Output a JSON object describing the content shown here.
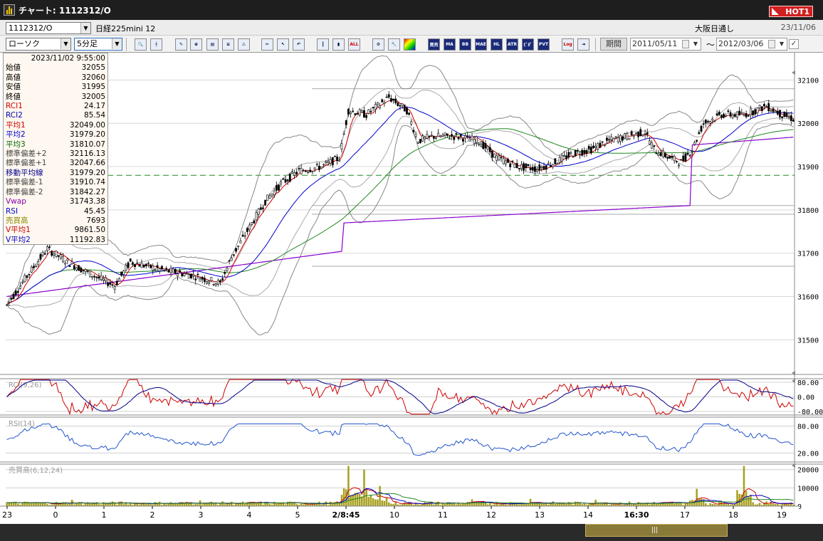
{
  "window": {
    "title": "チャート: 1112312/O",
    "hot_label": "HOT1"
  },
  "header": {
    "symbol_code": "1112312/O",
    "symbol_name": "日経225mini 12",
    "market": "大阪日通し",
    "date": "23/11/06"
  },
  "toolbar": {
    "chart_type": "ローソク",
    "timeframe": "5分足",
    "buttons": [
      "ALL",
      "MA",
      "BB",
      "MAE",
      "HL",
      "ATR",
      "ﾋﾟﾎﾞ",
      "PVT",
      "Log"
    ],
    "period_label": "期間",
    "date_from": "2011/05/11",
    "date_to": "2012/03/06",
    "tilde": "～"
  },
  "info": {
    "timestamp": "2023/11/02  9:55:00",
    "rows": [
      {
        "label": "始値",
        "value": "32055",
        "color": "#000000"
      },
      {
        "label": "高値",
        "value": "32060",
        "color": "#000000"
      },
      {
        "label": "安値",
        "value": "31995",
        "color": "#000000"
      },
      {
        "label": "終値",
        "value": "32005",
        "color": "#000000"
      },
      {
        "label": "RCI1",
        "value": "24.17",
        "color": "#cc0000"
      },
      {
        "label": "RCI2",
        "value": "85.54",
        "color": "#0000aa"
      },
      {
        "label": "平均1",
        "value": "32049.00",
        "color": "#cc0000"
      },
      {
        "label": "平均2",
        "value": "31979.20",
        "color": "#0000cc"
      },
      {
        "label": "平均3",
        "value": "31810.07",
        "color": "#006600"
      },
      {
        "label": "標準偏差+2",
        "value": "32116.13",
        "color": "#444444"
      },
      {
        "label": "標準偏差+1",
        "value": "32047.66",
        "color": "#444444"
      },
      {
        "label": "移動平均線",
        "value": "31979.20",
        "color": "#000088"
      },
      {
        "label": "標準偏差-1",
        "value": "31910.74",
        "color": "#444444"
      },
      {
        "label": "標準偏差-2",
        "value": "31842.27",
        "color": "#444444"
      },
      {
        "label": "Vwap",
        "value": "31743.38",
        "color": "#8800aa"
      },
      {
        "label": "RSI",
        "value": "45.45",
        "color": "#0000cc"
      },
      {
        "label": "売買高",
        "value": "7693",
        "color": "#888800"
      },
      {
        "label": "V平均1",
        "value": "9861.50",
        "color": "#cc0000"
      },
      {
        "label": "V平均2",
        "value": "11192.83",
        "color": "#0000cc"
      }
    ]
  },
  "price_axis": {
    "ticks": [
      "32100",
      "32000",
      "31900",
      "31800",
      "31700",
      "31600",
      "31500"
    ],
    "min": 31420,
    "max": 32150
  },
  "reference_line": 31880,
  "rci_panel": {
    "label": "RCI(9,26)",
    "ticks": [
      "80.00",
      "0.00",
      "-80.00"
    ]
  },
  "rsi_panel": {
    "label": "RSI(14)",
    "ticks": [
      "80.00",
      "20.00"
    ]
  },
  "volume_panel": {
    "label": "売買高(6,12,24)",
    "ticks": [
      "20000",
      "10000",
      "0"
    ]
  },
  "x_axis": {
    "labels": [
      {
        "text": "23",
        "bold": false
      },
      {
        "text": "0",
        "bold": false
      },
      {
        "text": "1",
        "bold": false
      },
      {
        "text": "2",
        "bold": false
      },
      {
        "text": "3",
        "bold": false
      },
      {
        "text": "4",
        "bold": false
      },
      {
        "text": "5",
        "bold": false
      },
      {
        "text": "2/8:45",
        "bold": true
      },
      {
        "text": "10",
        "bold": false
      },
      {
        "text": "11",
        "bold": false
      },
      {
        "text": "12",
        "bold": false
      },
      {
        "text": "13",
        "bold": false
      },
      {
        "text": "14",
        "bold": false
      },
      {
        "text": "16:30",
        "bold": true
      },
      {
        "text": "17",
        "bold": false
      },
      {
        "text": "18",
        "bold": false
      },
      {
        "text": "19",
        "bold": false
      }
    ]
  },
  "colors": {
    "ma1": "#cc0000",
    "ma2": "#0000cc",
    "ma3": "#228822",
    "vwap": "#8800cc",
    "bb": "#888888",
    "volume": "#a8a020",
    "rci1": "#cc0000",
    "rci2": "#000088",
    "rsi": "#2255cc"
  },
  "chart_data": {
    "type": "candlestick",
    "price_anchors": [
      [
        0,
        31580
      ],
      [
        8,
        31640
      ],
      [
        18,
        31710
      ],
      [
        27,
        31680
      ],
      [
        38,
        31650
      ],
      [
        48,
        31625
      ],
      [
        55,
        31680
      ],
      [
        70,
        31660
      ],
      [
        82,
        31650
      ],
      [
        95,
        31630
      ],
      [
        100,
        31690
      ],
      [
        108,
        31760
      ],
      [
        115,
        31820
      ],
      [
        122,
        31860
      ],
      [
        130,
        31890
      ],
      [
        140,
        31900
      ],
      [
        148,
        31920
      ],
      [
        152,
        32030
      ],
      [
        160,
        32020
      ],
      [
        170,
        32060
      ],
      [
        178,
        32030
      ],
      [
        183,
        31960
      ],
      [
        190,
        31970
      ],
      [
        200,
        31970
      ],
      [
        210,
        31960
      ],
      [
        218,
        31920
      ],
      [
        228,
        31900
      ],
      [
        236,
        31895
      ],
      [
        244,
        31910
      ],
      [
        252,
        31930
      ],
      [
        260,
        31940
      ],
      [
        268,
        31960
      ],
      [
        276,
        31970
      ],
      [
        284,
        31980
      ],
      [
        288,
        31940
      ],
      [
        295,
        31920
      ],
      [
        300,
        31910
      ],
      [
        305,
        31940
      ],
      [
        310,
        32000
      ],
      [
        318,
        32020
      ],
      [
        328,
        32020
      ],
      [
        338,
        32040
      ],
      [
        345,
        32020
      ],
      [
        350,
        32010
      ]
    ],
    "volume_spikes": [
      [
        29,
        3500
      ],
      [
        86,
        3200
      ],
      [
        152,
        22000
      ],
      [
        159,
        20000
      ],
      [
        166,
        11000
      ],
      [
        207,
        3800
      ],
      [
        233,
        4000
      ],
      [
        262,
        3500
      ],
      [
        307,
        9500
      ],
      [
        328,
        22000
      ]
    ]
  }
}
